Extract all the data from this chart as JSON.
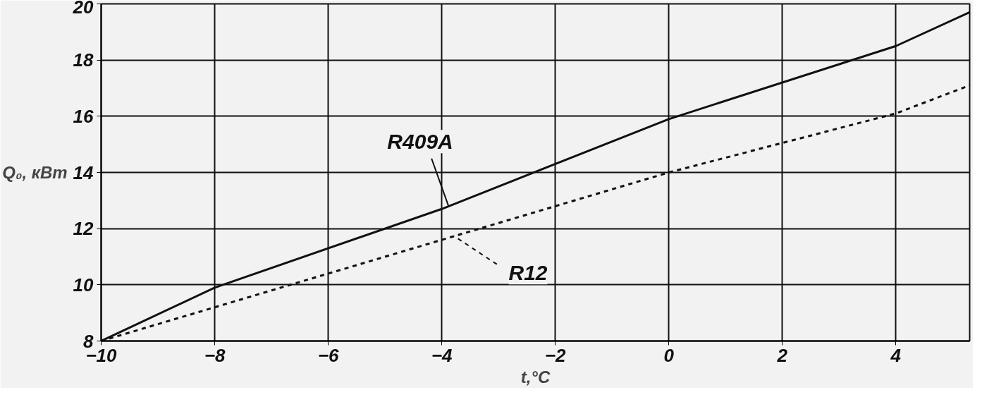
{
  "chart_data": {
    "type": "line",
    "xlabel": "t,°C",
    "ylabel": "Q₀, кВт",
    "xlim": [
      -10,
      5.3
    ],
    "ylim": [
      8,
      20
    ],
    "xticks": [
      -10,
      -8,
      -6,
      -4,
      -2,
      0,
      2,
      4
    ],
    "yticks": [
      8,
      10,
      12,
      14,
      16,
      18,
      20
    ],
    "grid": true,
    "marker": "none",
    "series": [
      {
        "name": "R409A",
        "color": "#111111",
        "line_style": "solid",
        "x": [
          -10,
          -8,
          -4,
          0,
          4,
          5.3
        ],
        "values": [
          8,
          9.9,
          12.7,
          15.9,
          18.5,
          19.7
        ]
      },
      {
        "name": "R12",
        "color": "#111111",
        "line_style": "dashed",
        "x": [
          -10,
          -8,
          -4,
          0,
          4,
          5.3
        ],
        "values": [
          8,
          9.2,
          11.6,
          14.0,
          16.1,
          17.1
        ]
      }
    ]
  }
}
